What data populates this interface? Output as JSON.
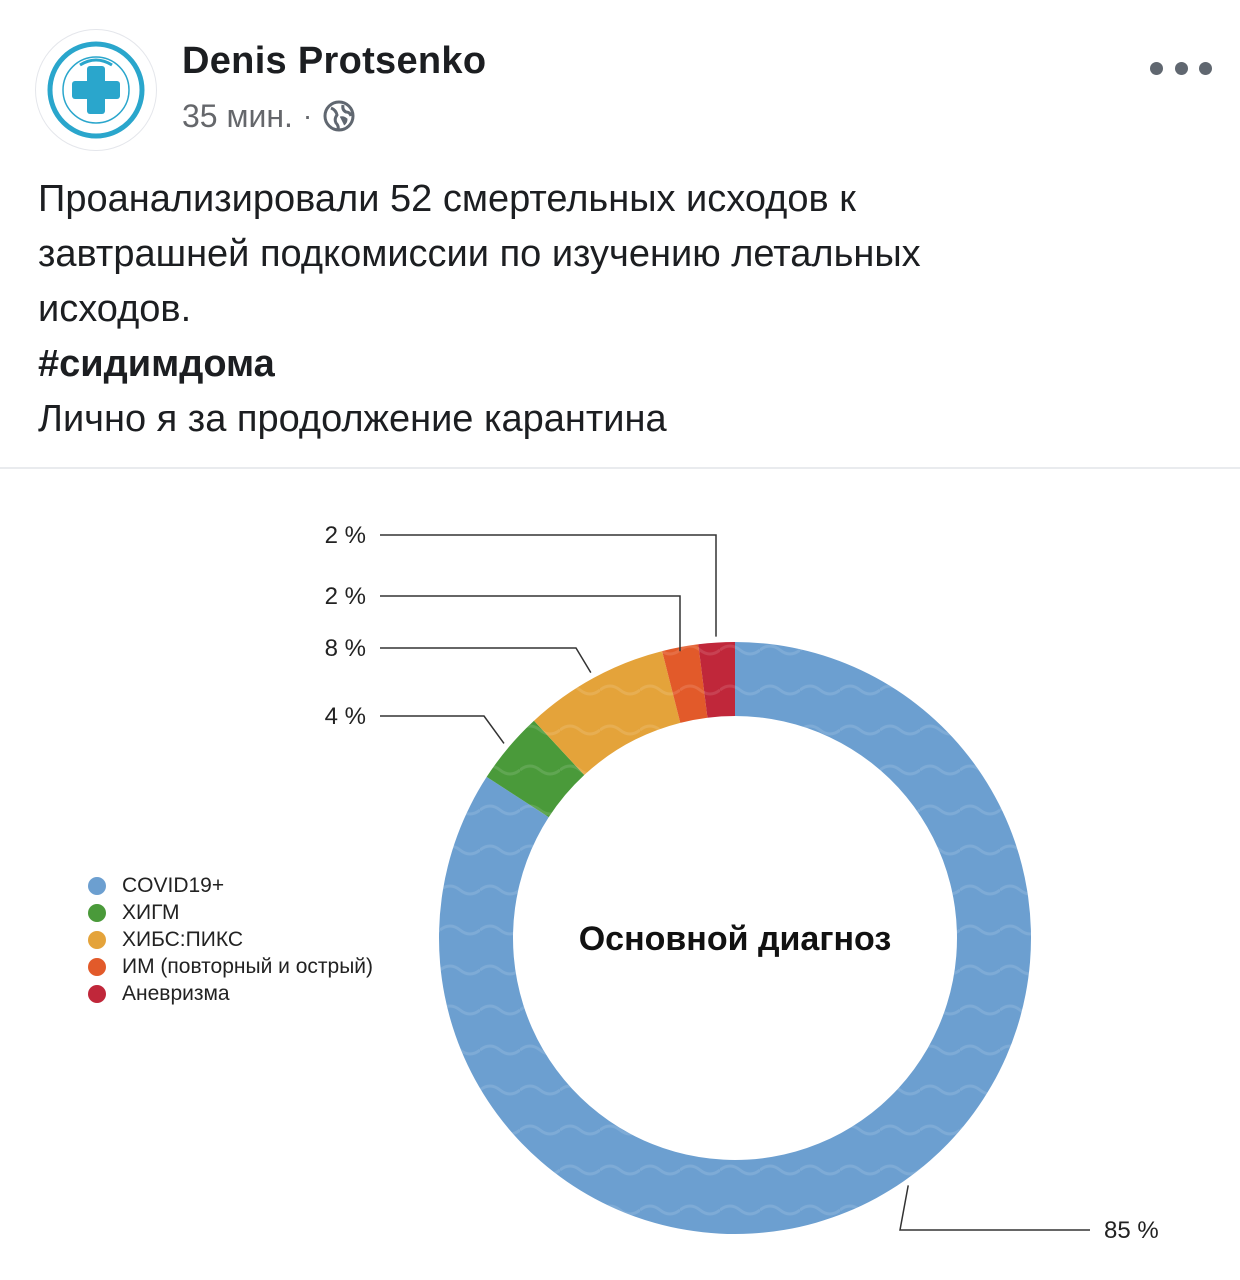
{
  "post": {
    "author": "Denis Protsenko",
    "time": "35 мин.",
    "separator": "·",
    "privacy_icon": "globe-icon",
    "more_icon": "more-horizontal-icon",
    "avatar_icon": "medical-cross-logo",
    "avatar_text": "МЫ РАБОТАЕМ ДЛЯ ВАС · ОСТАВАЙТЕСЬ ДОМА",
    "text_lines": [
      "Проанализировали 52 смертельных исходов к",
      "завтрашней подкомиссии по изучению летальных",
      "исходов."
    ],
    "hashtag": "#сидимдома",
    "closing": "Лично я за продолжение карантина"
  },
  "chart_data": {
    "type": "pie",
    "title": "Основной диагноз",
    "categories": [
      "COVID19+",
      "ХИГМ",
      "ХИБС:ПИКС",
      "ИМ (повторный и острый)",
      "Аневризма"
    ],
    "values": [
      85,
      4,
      8,
      2,
      2
    ],
    "labels": [
      "85 %",
      "4 %",
      "8 %",
      "2 %",
      "2 %"
    ],
    "colors": [
      "#6c9fd0",
      "#4a9a3a",
      "#e4a33a",
      "#e25a2a",
      "#c0273a"
    ],
    "legend_position": "left"
  }
}
